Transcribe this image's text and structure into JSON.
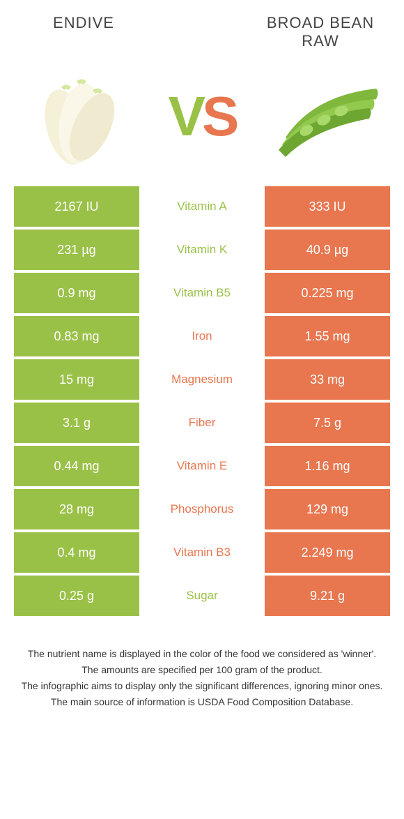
{
  "colors": {
    "left": "#9ac147",
    "right": "#e8764f",
    "left_dark": "#8aaf3f",
    "right_dark": "#d96a44"
  },
  "foods": {
    "left": {
      "name": "ENDIVE"
    },
    "right": {
      "name": "BROAD BEAN RAW"
    }
  },
  "vs": {
    "v": "V",
    "s": "S"
  },
  "rows": [
    {
      "left": "2167 IU",
      "label": "Vitamin A",
      "right": "333 IU",
      "winner": "left"
    },
    {
      "left": "231 µg",
      "label": "Vitamin K",
      "right": "40.9 µg",
      "winner": "left"
    },
    {
      "left": "0.9 mg",
      "label": "Vitamin B5",
      "right": "0.225 mg",
      "winner": "left"
    },
    {
      "left": "0.83 mg",
      "label": "Iron",
      "right": "1.55 mg",
      "winner": "right"
    },
    {
      "left": "15 mg",
      "label": "Magnesium",
      "right": "33 mg",
      "winner": "right"
    },
    {
      "left": "3.1 g",
      "label": "Fiber",
      "right": "7.5 g",
      "winner": "right"
    },
    {
      "left": "0.44 mg",
      "label": "Vitamin E",
      "right": "1.16 mg",
      "winner": "right"
    },
    {
      "left": "28 mg",
      "label": "Phosphorus",
      "right": "129 mg",
      "winner": "right"
    },
    {
      "left": "0.4 mg",
      "label": "Vitamin B3",
      "right": "2.249 mg",
      "winner": "right"
    },
    {
      "left": "0.25 g",
      "label": "Sugar",
      "right": "9.21 g",
      "winner": "left"
    }
  ],
  "footer": {
    "l1": "The nutrient name is displayed in the color of the food we considered as 'winner'.",
    "l2": "The amounts are specified per 100 gram of the product.",
    "l3": "The infographic aims to display only the significant differences, ignoring minor ones.",
    "l4": "The main source of information is USDA Food Composition Database."
  }
}
